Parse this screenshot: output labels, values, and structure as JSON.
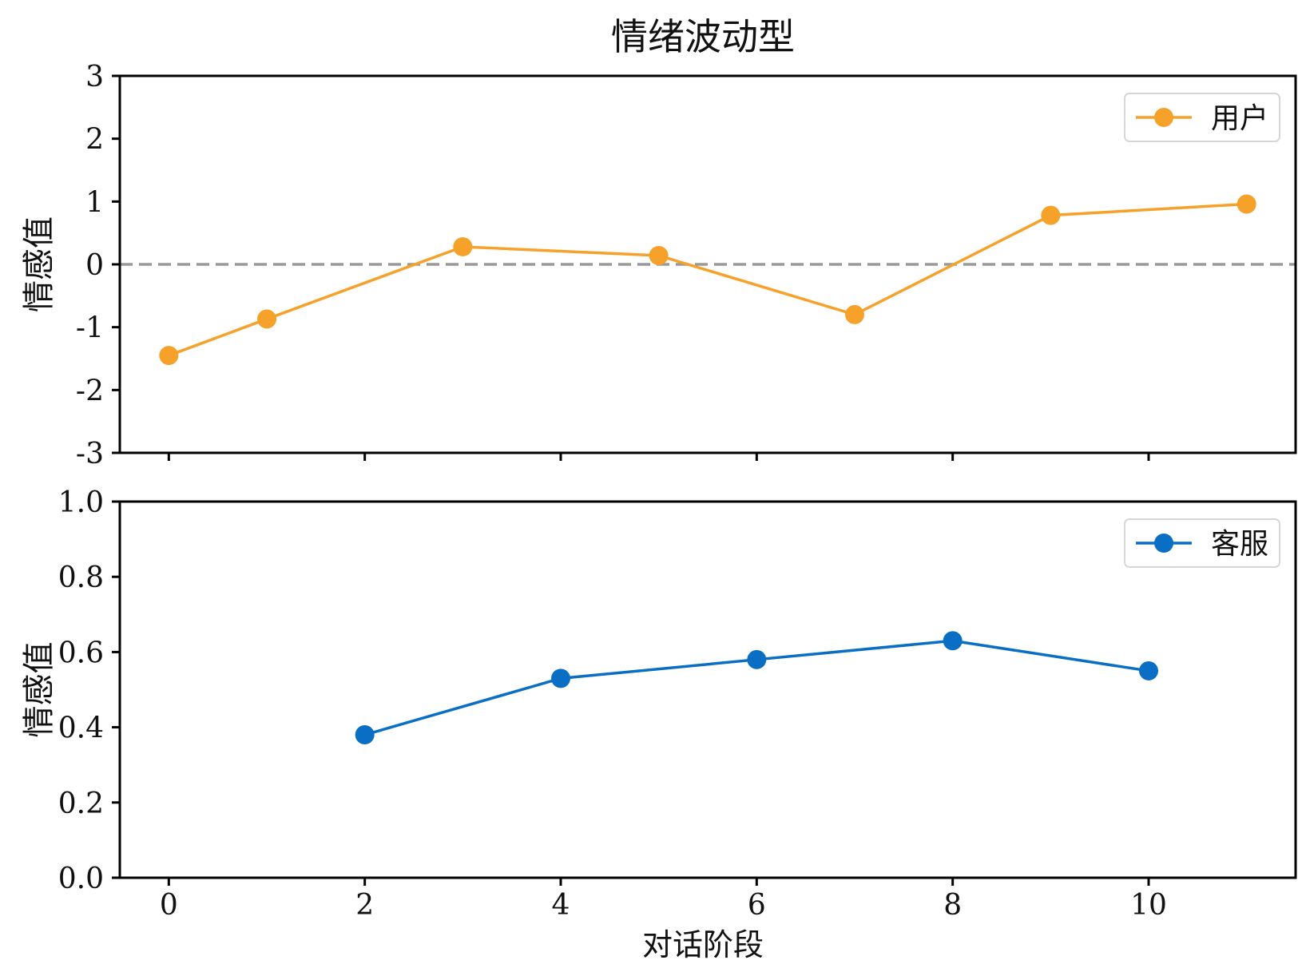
{
  "chart_data": {
    "title": "情绪波动型",
    "xlabel": "对话阶段",
    "xlim": [
      -0.5,
      11.5
    ],
    "xticks": [
      0,
      2,
      4,
      6,
      8,
      10
    ],
    "subplots": [
      {
        "type": "line",
        "ylabel": "情感值",
        "ylim": [
          -3,
          3
        ],
        "yticks": [
          3,
          2,
          1,
          0,
          -1,
          -2,
          -3
        ],
        "ytick_labels": [
          "3",
          "2",
          "1",
          "0",
          "-1",
          "-2",
          "-3"
        ],
        "reference_line": {
          "y": 0,
          "style": "dashed",
          "color": "#999999"
        },
        "legend": "top-right",
        "series": [
          {
            "name": "用户",
            "color": "#F5A12A",
            "x": [
              0,
              1,
              3,
              5,
              7,
              9,
              11
            ],
            "y": [
              -1.45,
              -0.87,
              0.28,
              0.14,
              -0.8,
              0.78,
              0.96
            ]
          }
        ]
      },
      {
        "type": "line",
        "ylabel": "情感值",
        "ylim": [
          0,
          1
        ],
        "yticks": [
          1.0,
          0.8,
          0.6,
          0.4,
          0.2,
          0.0
        ],
        "ytick_labels": [
          "1.0",
          "0.8",
          "0.6",
          "0.4",
          "0.2",
          "0.0"
        ],
        "legend": "top-right",
        "series": [
          {
            "name": "客服",
            "color": "#0A6FC4",
            "x": [
              2,
              4,
              6,
              8,
              10
            ],
            "y": [
              0.38,
              0.53,
              0.58,
              0.63,
              0.55
            ]
          }
        ]
      }
    ]
  }
}
